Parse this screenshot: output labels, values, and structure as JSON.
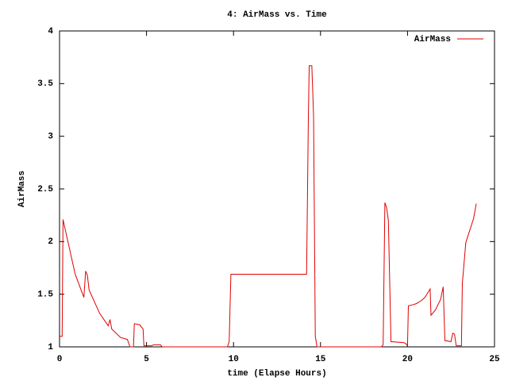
{
  "chart_data": {
    "type": "line",
    "title": "4: AirMass vs. Time",
    "xlabel": "time (Elapse Hours)",
    "ylabel": "AirMass",
    "x": [
      0,
      0.15,
      0.2,
      0.4,
      0.9,
      1.4,
      1.5,
      1.6,
      1.7,
      2.3,
      2.8,
      2.9,
      3.0,
      3.5,
      3.9,
      4.05,
      4.25,
      4.3,
      4.6,
      4.8,
      4.85,
      5.3,
      5.4,
      5.8,
      5.9,
      9.65,
      9.75,
      9.85,
      14.2,
      14.3,
      14.35,
      14.5,
      14.6,
      14.7,
      14.8,
      18.5,
      18.6,
      18.7,
      18.8,
      18.9,
      19.05,
      19.8,
      19.9,
      20.0,
      20.05,
      20.3,
      20.5,
      20.8,
      21.0,
      21.3,
      21.35,
      21.6,
      21.9,
      22.05,
      22.15,
      22.5,
      22.6,
      22.7,
      22.8,
      23.1,
      23.15,
      23.35,
      23.8,
      23.95
    ],
    "series": [
      {
        "name": "AirMass",
        "color": "#e00000",
        "values": [
          1.1,
          1.1,
          2.21,
          2.06,
          1.69,
          1.47,
          1.72,
          1.68,
          1.54,
          1.32,
          1.2,
          1.26,
          1.17,
          1.09,
          1.07,
          1.0,
          1.0,
          1.22,
          1.21,
          1.17,
          1.01,
          1.01,
          1.02,
          1.02,
          1.0,
          1.0,
          1.05,
          1.69,
          1.69,
          3.16,
          3.67,
          3.67,
          3.2,
          1.1,
          1.0,
          1.0,
          1.02,
          2.37,
          2.32,
          2.2,
          1.05,
          1.04,
          1.03,
          1.01,
          1.39,
          1.4,
          1.41,
          1.44,
          1.47,
          1.55,
          1.3,
          1.35,
          1.45,
          1.57,
          1.06,
          1.05,
          1.13,
          1.12,
          1.01,
          1.01,
          1.6,
          1.99,
          2.22,
          2.36
        ]
      }
    ],
    "xlim": [
      0,
      25
    ],
    "xticks": [
      0,
      5,
      10,
      15,
      20,
      25
    ],
    "ylim": [
      1,
      4
    ],
    "yticks": [
      1,
      1.5,
      2,
      2.5,
      3,
      3.5,
      4
    ],
    "grid": false,
    "legend": "upper right"
  }
}
